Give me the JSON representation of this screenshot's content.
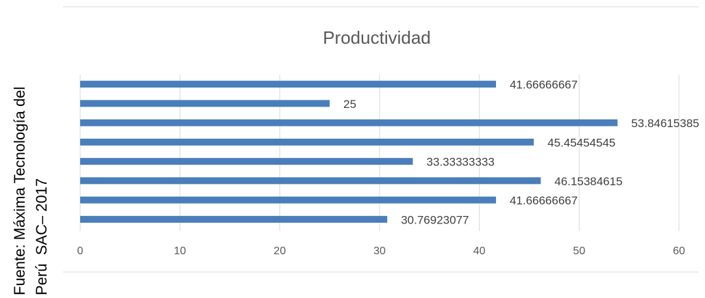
{
  "chart_data": {
    "type": "bar",
    "orientation": "horizontal",
    "title": "Productividad",
    "source": [
      "Fuente: Máxima Tecnología del",
      "Perú  SAC– 2017"
    ],
    "categories": [
      null,
      null,
      null,
      null,
      null,
      null,
      null,
      null
    ],
    "values": [
      30.76923077,
      41.66666667,
      46.15384615,
      33.33333333,
      45.45454545,
      53.84615385,
      25,
      41.66666667
    ],
    "color": "#4a7ebb",
    "xlim": [
      0,
      60
    ],
    "xticks": [
      0,
      10,
      20,
      30,
      40,
      50,
      60
    ],
    "grid": true
  }
}
